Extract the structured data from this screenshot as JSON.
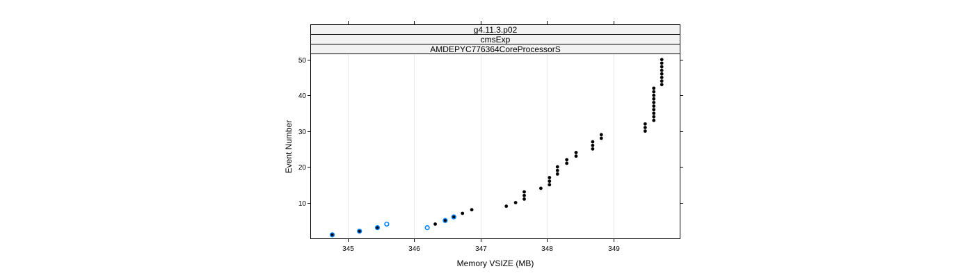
{
  "chart_data": {
    "type": "scatter",
    "strips": [
      "g4.11.3.p02",
      "cmsExp",
      "AMDEPYC776364CoreProcessorS"
    ],
    "xlabel": "Memory VSIZE (MB)",
    "ylabel": "Event Number",
    "xlim": [
      344.45,
      350.0
    ],
    "ylim": [
      0,
      51.5
    ],
    "x_ticks": [
      345,
      346,
      347,
      348,
      349
    ],
    "y_ticks": [
      10,
      20,
      30,
      40,
      50
    ],
    "grid": true,
    "colors": {
      "black_series": "#000000",
      "blue_series": "#0080ff",
      "grid": "#e6e6e6"
    },
    "series": [
      {
        "color": "#000000",
        "style": "filled",
        "points": [
          [
            344.77,
            1
          ],
          [
            345.18,
            2
          ],
          [
            345.45,
            3
          ],
          [
            346.32,
            4
          ],
          [
            346.47,
            5
          ],
          [
            346.6,
            6
          ],
          [
            346.73,
            7
          ],
          [
            346.87,
            8
          ],
          [
            347.39,
            9
          ],
          [
            347.53,
            10
          ],
          [
            347.66,
            11
          ],
          [
            347.66,
            12
          ],
          [
            347.66,
            13
          ],
          [
            347.91,
            14
          ],
          [
            348.04,
            15
          ],
          [
            348.04,
            16
          ],
          [
            348.04,
            17
          ],
          [
            348.16,
            18
          ],
          [
            348.16,
            19
          ],
          [
            348.16,
            20
          ],
          [
            348.3,
            21
          ],
          [
            348.3,
            22
          ],
          [
            348.44,
            23
          ],
          [
            348.44,
            24
          ],
          [
            348.69,
            25
          ],
          [
            348.69,
            26
          ],
          [
            348.69,
            27
          ],
          [
            348.82,
            28
          ],
          [
            348.82,
            29
          ],
          [
            349.48,
            30
          ],
          [
            349.48,
            31
          ],
          [
            349.48,
            32
          ],
          [
            349.61,
            33
          ],
          [
            349.61,
            34
          ],
          [
            349.61,
            35
          ],
          [
            349.61,
            36
          ],
          [
            349.61,
            37
          ],
          [
            349.61,
            38
          ],
          [
            349.61,
            39
          ],
          [
            349.61,
            40
          ],
          [
            349.61,
            41
          ],
          [
            349.61,
            42
          ],
          [
            349.73,
            43
          ],
          [
            349.73,
            44
          ],
          [
            349.73,
            45
          ],
          [
            349.73,
            46
          ],
          [
            349.73,
            47
          ],
          [
            349.73,
            48
          ],
          [
            349.73,
            49
          ],
          [
            349.73,
            50
          ]
        ]
      },
      {
        "color": "#0080ff",
        "style": "open",
        "points": [
          [
            344.77,
            1
          ],
          [
            345.18,
            2
          ],
          [
            345.45,
            3
          ],
          [
            345.59,
            4
          ],
          [
            346.2,
            3
          ],
          [
            346.47,
            5
          ],
          [
            346.6,
            6
          ]
        ]
      }
    ]
  }
}
